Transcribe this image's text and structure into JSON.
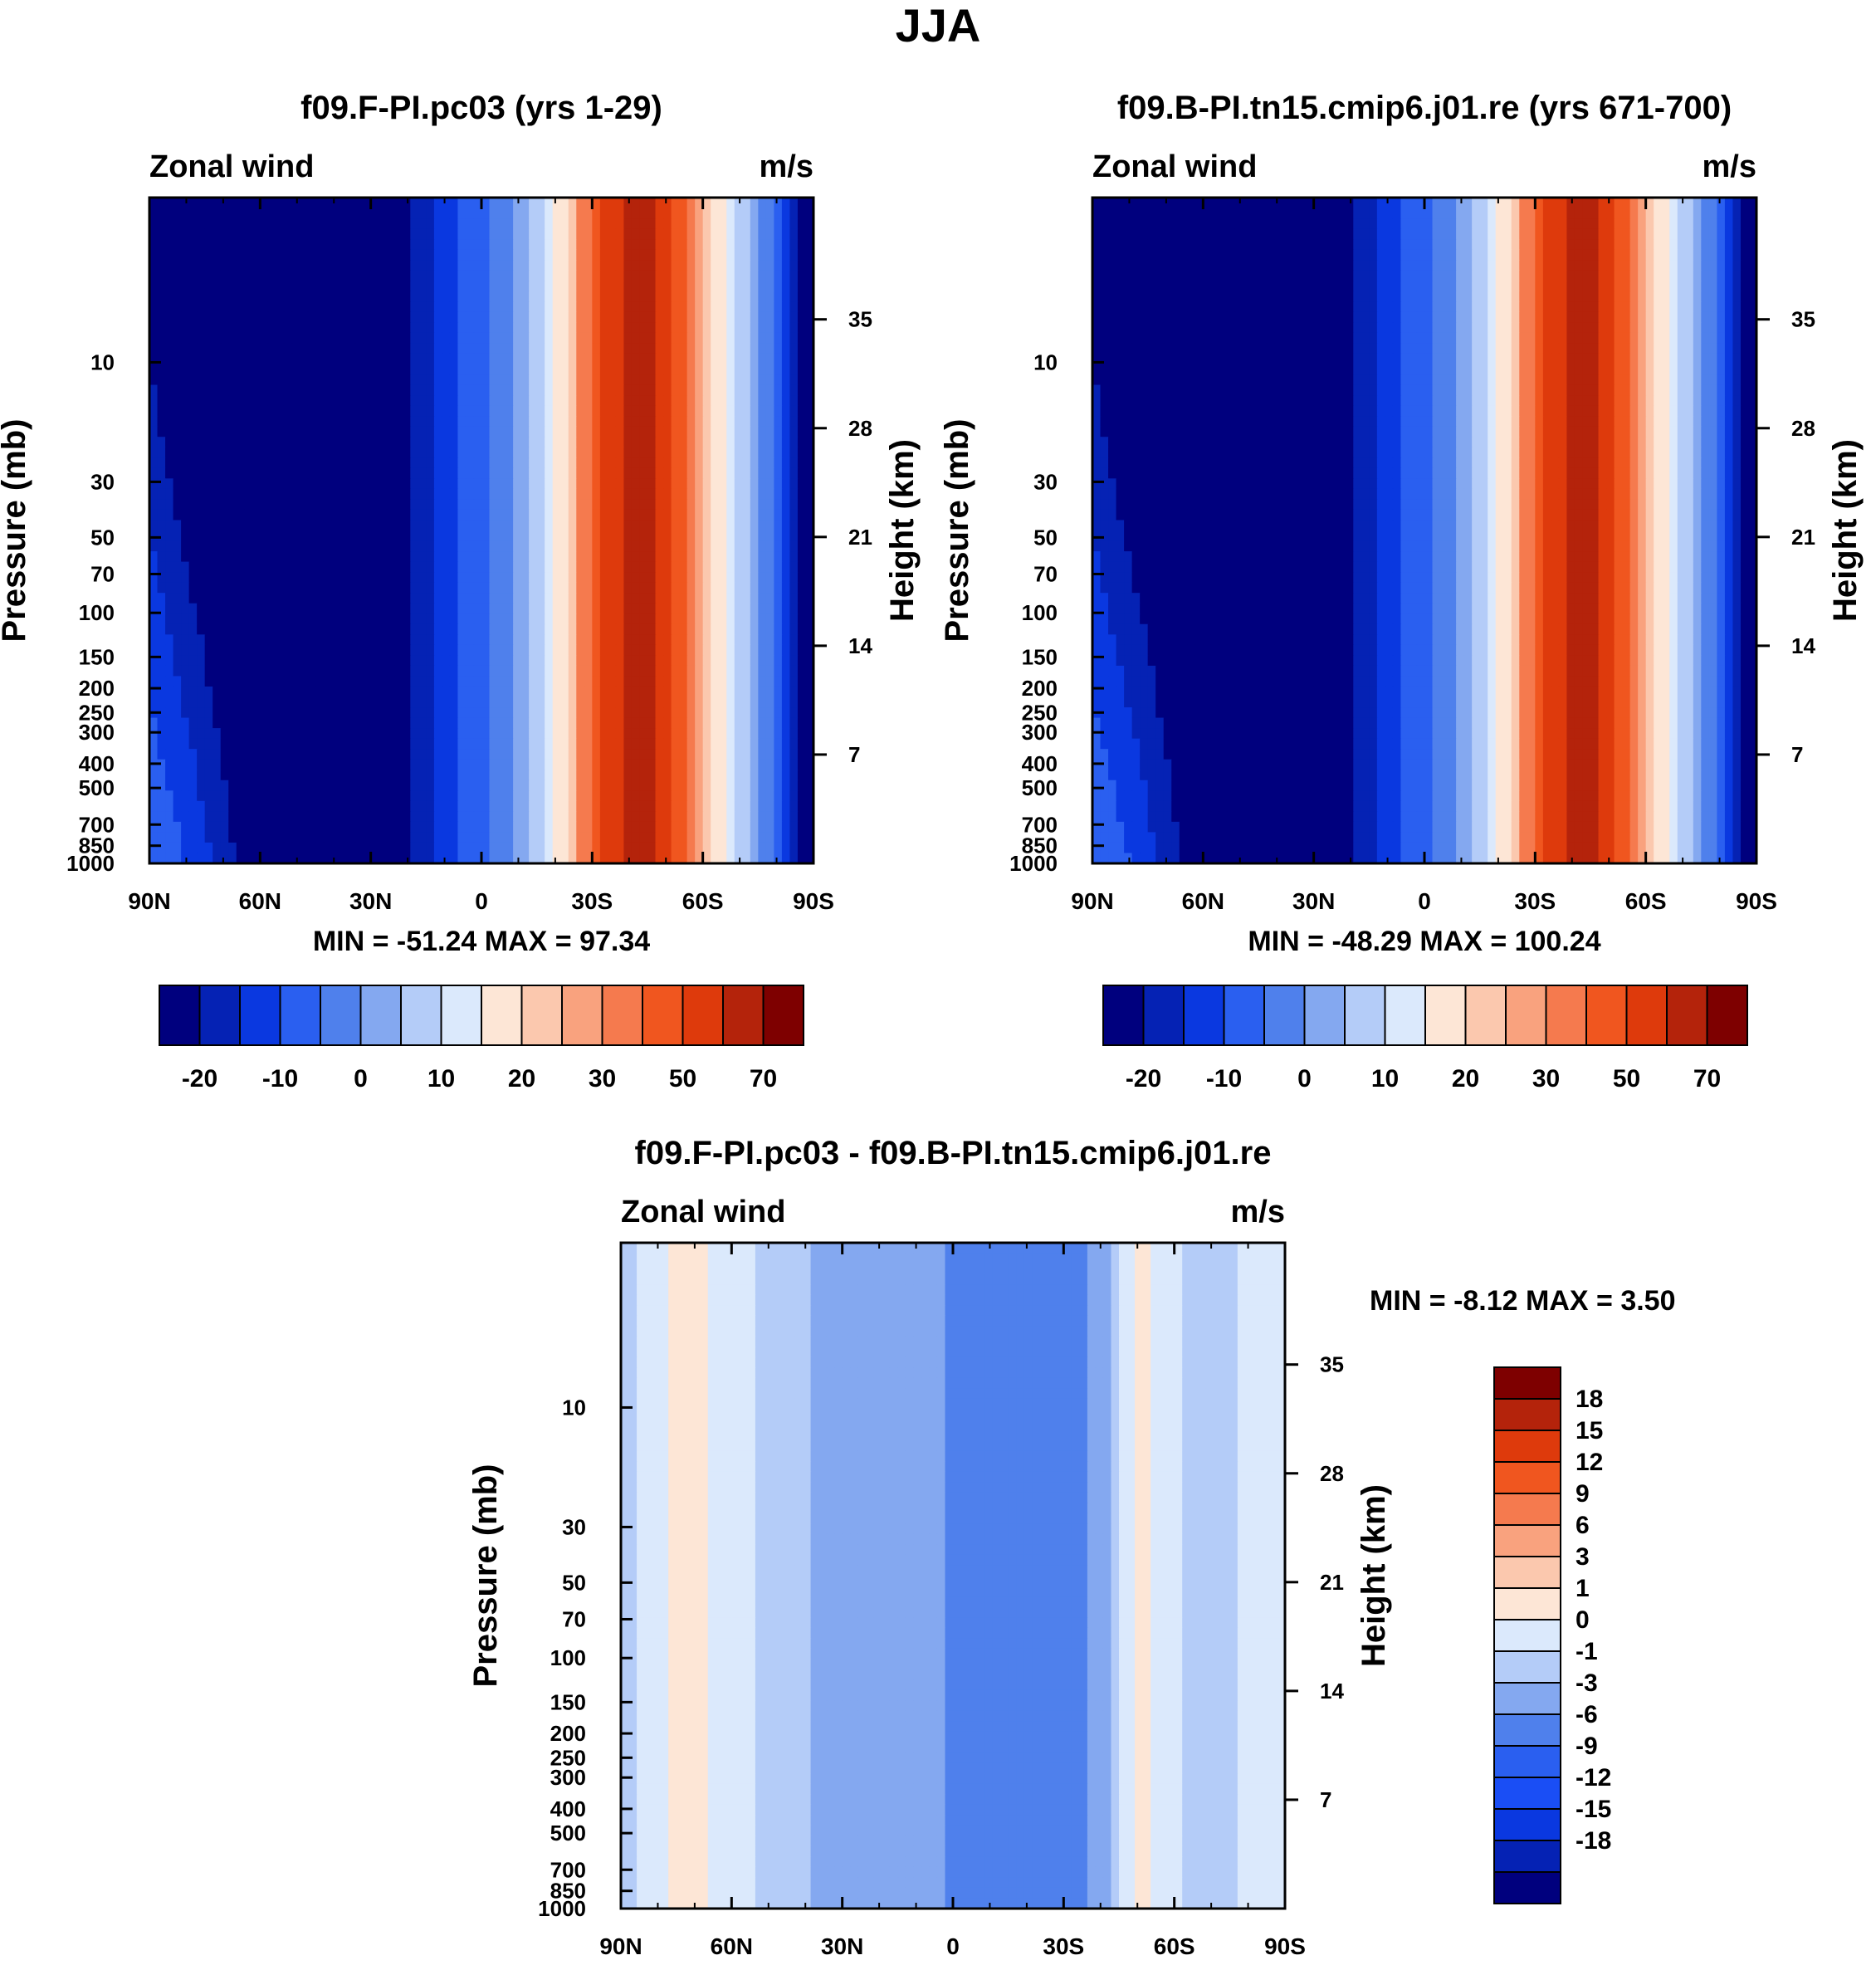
{
  "figure": {
    "title": "JJA",
    "season": "JJA"
  },
  "colors": {
    "main_palette": [
      "#00007e",
      "#0522b4",
      "#0a38e0",
      "#2a5ff0",
      "#4f80ec",
      "#84a8f0",
      "#b4ccf8",
      "#dbe9fc",
      "#fde6d6",
      "#fbc8ae",
      "#f9a27e",
      "#f57a4e",
      "#f0561f",
      "#de3a0c",
      "#b4230b",
      "#7e0000"
    ],
    "diff_palette": [
      "#00007e",
      "#0522b4",
      "#0a38e0",
      "#1a4ef5",
      "#2a5ff0",
      "#4f80ec",
      "#84a8f0",
      "#b4ccf8",
      "#dbe9fc",
      "#fde6d6",
      "#fbc8ae",
      "#f9a27e",
      "#f57a4e",
      "#f0561f",
      "#de3a0c",
      "#b4230b",
      "#7e0000"
    ]
  },
  "chart_data": [
    {
      "type": "contour",
      "id": "panel_a",
      "title": "f09.F-PI.pc03 (yrs 1-29)",
      "left_label": "Zonal wind",
      "right_label": "m/s",
      "ylabel": "Pressure (mb)",
      "ylabel_right": "Height (km)",
      "x_ticks": [
        "90N",
        "60N",
        "30N",
        "0",
        "30S",
        "60S",
        "90S"
      ],
      "y_ticks": [
        "10",
        "30",
        "50",
        "70",
        "100",
        "150",
        "200",
        "250",
        "300",
        "400",
        "500",
        "700",
        "850",
        "1000"
      ],
      "y2_ticks": [
        "35",
        "28",
        "21",
        "14",
        "7"
      ],
      "stats": "MIN = -51.24  MAX =  97.34",
      "min": -51.24,
      "max": 97.34,
      "colorbar_labels": [
        "-20",
        "-10",
        "0",
        "10",
        "20",
        "30",
        "50",
        "70"
      ]
    },
    {
      "type": "contour",
      "id": "panel_b",
      "title": "f09.B-PI.tn15.cmip6.j01.re (yrs 671-700)",
      "left_label": "Zonal wind",
      "right_label": "m/s",
      "ylabel": "Pressure (mb)",
      "ylabel_right": "Height (km)",
      "x_ticks": [
        "90N",
        "60N",
        "30N",
        "0",
        "30S",
        "60S",
        "90S"
      ],
      "y_ticks": [
        "10",
        "30",
        "50",
        "70",
        "100",
        "150",
        "200",
        "250",
        "300",
        "400",
        "500",
        "700",
        "850",
        "1000"
      ],
      "y2_ticks": [
        "35",
        "28",
        "21",
        "14",
        "7"
      ],
      "stats": "MIN = -48.29  MAX = 100.24",
      "min": -48.29,
      "max": 100.24,
      "colorbar_labels": [
        "-20",
        "-10",
        "0",
        "10",
        "20",
        "30",
        "50",
        "70"
      ]
    },
    {
      "type": "contour",
      "id": "panel_diff",
      "title": "f09.F-PI.pc03 - f09.B-PI.tn15.cmip6.j01.re",
      "left_label": "Zonal wind",
      "right_label": "m/s",
      "ylabel": "Pressure (mb)",
      "ylabel_right": "Height (km)",
      "x_ticks": [
        "90N",
        "60N",
        "30N",
        "0",
        "30S",
        "60S",
        "90S"
      ],
      "y_ticks": [
        "10",
        "30",
        "50",
        "70",
        "100",
        "150",
        "200",
        "250",
        "300",
        "400",
        "500",
        "700",
        "850",
        "1000"
      ],
      "y2_ticks": [
        "35",
        "28",
        "21",
        "14",
        "7"
      ],
      "stats": "MIN =  -8.12  MAX =    3.50",
      "min": -8.12,
      "max": 3.5,
      "colorbar_labels": [
        "18",
        "15",
        "12",
        "9",
        "6",
        "3",
        "1",
        "0",
        "-1",
        "-3",
        "-6",
        "-9",
        "-12",
        "-15",
        "-18"
      ]
    }
  ]
}
